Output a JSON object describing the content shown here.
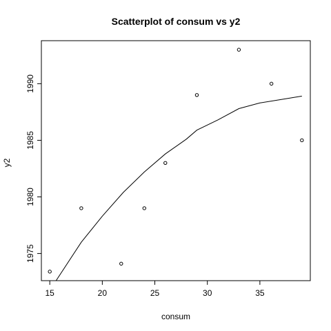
{
  "chart_data": {
    "type": "scatter",
    "title": "Scatterplot of consum vs y2",
    "xlabel": "consum",
    "ylabel": "y2",
    "xlim": [
      14.2,
      39.8
    ],
    "ylim": [
      1972.6,
      1993.8
    ],
    "xticks": [
      15,
      20,
      25,
      30,
      35
    ],
    "xtick_labels": [
      "15",
      "20",
      "25",
      "30",
      "35"
    ],
    "yticks": [
      1975,
      1980,
      1985,
      1990
    ],
    "ytick_labels": [
      "1975",
      "1980",
      "1985",
      "1990"
    ],
    "grid": false,
    "points": [
      {
        "x": 15.0,
        "y": 1973.4
      },
      {
        "x": 18.0,
        "y": 1979.0
      },
      {
        "x": 21.8,
        "y": 1974.1
      },
      {
        "x": 24.0,
        "y": 1979.0
      },
      {
        "x": 26.0,
        "y": 1983.0
      },
      {
        "x": 29.0,
        "y": 1989.0
      },
      {
        "x": 33.0,
        "y": 1993.0
      },
      {
        "x": 36.1,
        "y": 1990.0
      },
      {
        "x": 39.0,
        "y": 1985.0
      }
    ],
    "smooth_line": [
      {
        "x": 15.6,
        "y": 1972.6
      },
      {
        "x": 18.0,
        "y": 1976.0
      },
      {
        "x": 20.0,
        "y": 1978.3
      },
      {
        "x": 22.0,
        "y": 1980.4
      },
      {
        "x": 24.0,
        "y": 1982.2
      },
      {
        "x": 26.0,
        "y": 1983.8
      },
      {
        "x": 28.0,
        "y": 1985.1
      },
      {
        "x": 29.0,
        "y": 1985.9
      },
      {
        "x": 31.0,
        "y": 1986.8
      },
      {
        "x": 33.0,
        "y": 1987.8
      },
      {
        "x": 35.0,
        "y": 1988.3
      },
      {
        "x": 37.0,
        "y": 1988.6
      },
      {
        "x": 39.0,
        "y": 1988.9
      }
    ]
  }
}
